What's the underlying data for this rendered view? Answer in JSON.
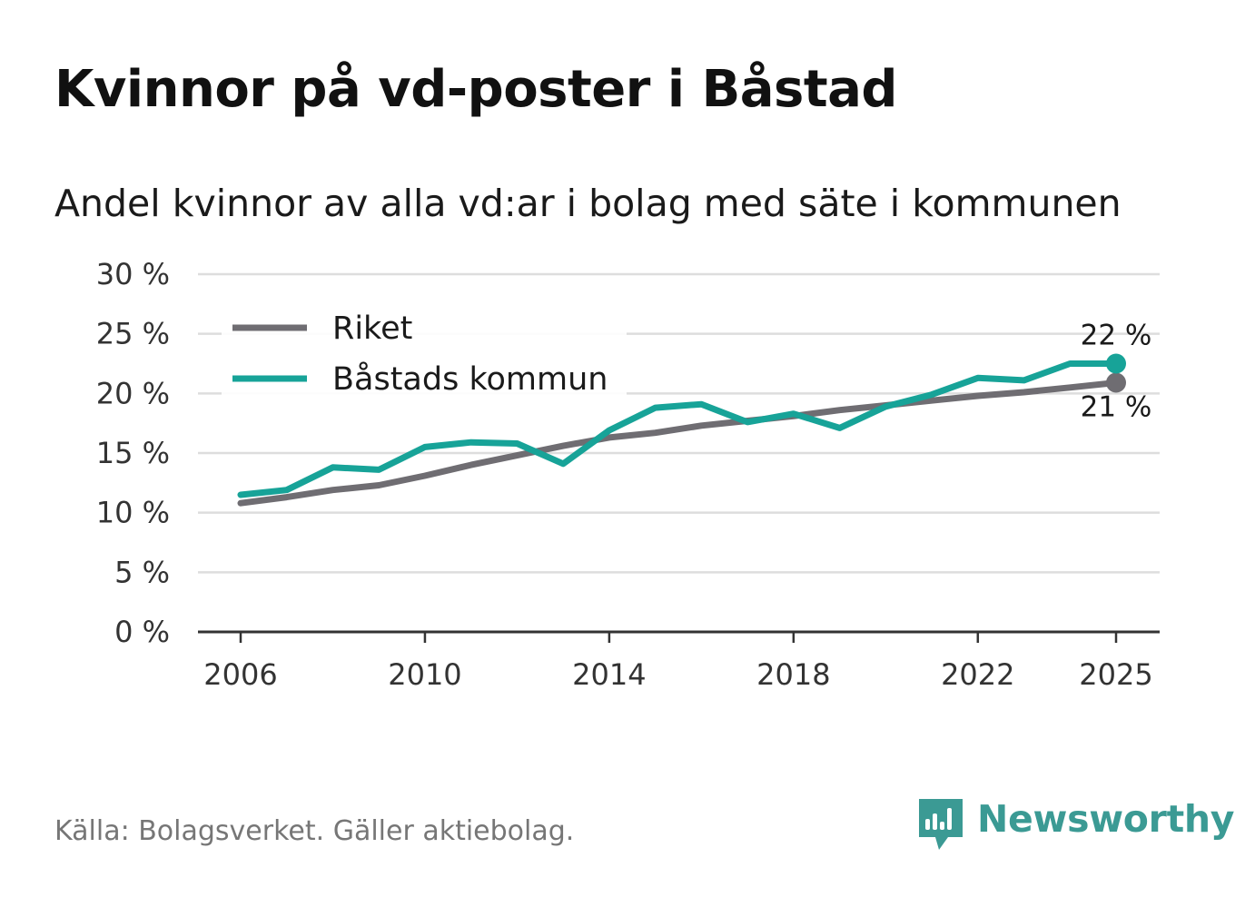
{
  "header": {
    "title": "Kvinnor på vd-poster i Båstad",
    "subtitle": "Andel kvinnor av alla vd:ar i bolag med säte i kommunen"
  },
  "footer": {
    "source": "Källa: Bolagsverket. Gäller aktiebolag.",
    "brand": "Newsworthy",
    "brand_icon": "bar-chart-speech-bubble-icon"
  },
  "colors": {
    "riket": "#6f6d72",
    "bastad": "#17a398",
    "grid": "#dddddd",
    "axis": "#333333",
    "brand": "#3b9a94"
  },
  "chart_data": {
    "type": "line",
    "title": "Kvinnor på vd-poster i Båstad",
    "subtitle": "Andel kvinnor av alla vd:ar i bolag med säte i kommunen",
    "xlabel": "",
    "ylabel": "",
    "x": [
      2006,
      2007,
      2008,
      2009,
      2010,
      2011,
      2012,
      2013,
      2014,
      2015,
      2016,
      2017,
      2018,
      2019,
      2020,
      2021,
      2022,
      2023,
      2024,
      2025
    ],
    "xlim": [
      2006,
      2025
    ],
    "xticks": [
      2006,
      2010,
      2014,
      2018,
      2022,
      2025
    ],
    "ylim": [
      0,
      30
    ],
    "yticks": [
      0,
      5,
      10,
      15,
      20,
      25,
      30
    ],
    "ytick_suffix": " %",
    "grid": true,
    "legend": "top-left",
    "series": [
      {
        "name": "Riket",
        "color": "#6f6d72",
        "values": [
          10.8,
          11.3,
          11.9,
          12.3,
          13.1,
          14.0,
          14.8,
          15.6,
          16.3,
          16.7,
          17.3,
          17.7,
          18.1,
          18.6,
          19.0,
          19.4,
          19.8,
          20.1,
          20.5,
          20.9
        ],
        "end_label": "21 %"
      },
      {
        "name": "Båstads kommun",
        "color": "#17a398",
        "values": [
          11.5,
          11.9,
          13.8,
          13.6,
          15.5,
          15.9,
          15.8,
          14.1,
          16.9,
          18.8,
          19.1,
          17.6,
          18.3,
          17.1,
          18.9,
          19.9,
          21.3,
          21.1,
          22.5,
          22.5
        ],
        "end_label": "22 %"
      }
    ]
  }
}
